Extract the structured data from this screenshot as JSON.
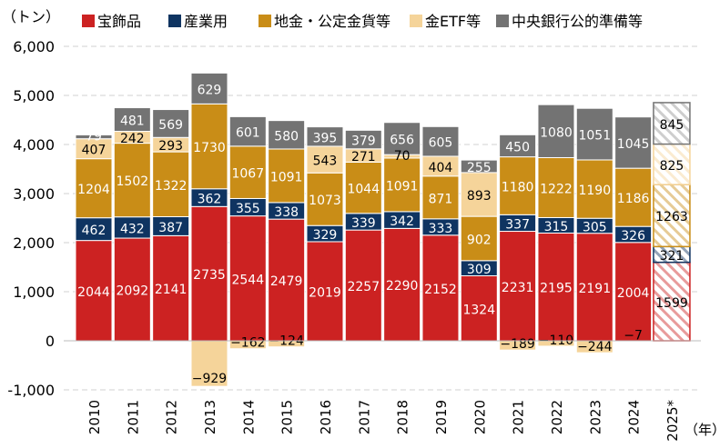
{
  "chart_data": {
    "type": "bar",
    "stacked": true,
    "ylabel": "（トン）",
    "xlabel": "（年）",
    "ylim": [
      -1000,
      6000
    ],
    "yticks": [
      -1000,
      0,
      1000,
      2000,
      3000,
      4000,
      5000,
      6000
    ],
    "ytick_labels": [
      "-1,000",
      "0",
      "1,000",
      "2,000",
      "3,000",
      "4,000",
      "5,000",
      "6,000"
    ],
    "grid": true,
    "legend_position": "top",
    "categories": [
      "2010",
      "2011",
      "2012",
      "2013",
      "2014",
      "2015",
      "2016",
      "2017",
      "2018",
      "2019",
      "2020",
      "2021",
      "2022",
      "2023",
      "2024",
      "2025*"
    ],
    "forecast_category": "2025*",
    "series": [
      {
        "name": "宝飾品",
        "color": "#cc2222",
        "values": [
          2044,
          2092,
          2141,
          2735,
          2544,
          2479,
          2019,
          2257,
          2290,
          2152,
          1324,
          2231,
          2195,
          2191,
          2004,
          1599
        ]
      },
      {
        "name": "産業用",
        "color": "#0f3461",
        "values": [
          462,
          432,
          387,
          362,
          355,
          338,
          329,
          339,
          342,
          333,
          309,
          337,
          315,
          305,
          326,
          321
        ]
      },
      {
        "name": "地金・公定金貨等",
        "color": "#c98d17",
        "values": [
          1204,
          1502,
          1322,
          1730,
          1067,
          1091,
          1073,
          1044,
          1091,
          871,
          902,
          1180,
          1222,
          1190,
          1186,
          1263
        ]
      },
      {
        "name": "金ETF等",
        "color": "#f5d49a",
        "values": [
          407,
          242,
          293,
          -929,
          -162,
          -124,
          543,
          271,
          70,
          404,
          893,
          -189,
          -110,
          -244,
          -7,
          825
        ]
      },
      {
        "name": "中央銀行公的準備等",
        "color": "#737373",
        "values": [
          79,
          481,
          569,
          629,
          601,
          580,
          395,
          379,
          656,
          605,
          255,
          450,
          1080,
          1051,
          1045,
          845
        ]
      }
    ]
  }
}
